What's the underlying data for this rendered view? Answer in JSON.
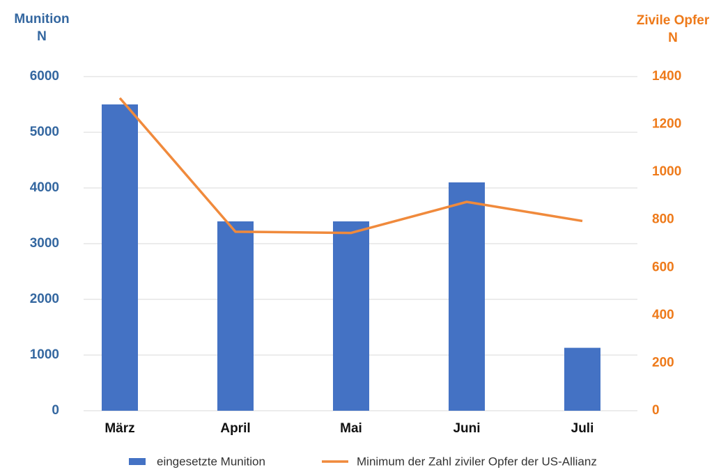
{
  "chart_data": {
    "type": "bar",
    "y_label": [
      "Munition",
      "N"
    ],
    "y2_label": [
      "Zivile Opfer",
      "N"
    ],
    "categories": [
      "März",
      "April",
      "Mai",
      "Juni",
      "Juli"
    ],
    "series": [
      {
        "name": "eingesetzte Munition",
        "type": "bar",
        "color": "#4472c4",
        "values": [
          5500,
          3400,
          3400,
          4100,
          1130
        ]
      },
      {
        "name": "Minimum der Zahl ziviler Opfer der US-Allianz",
        "type": "line",
        "axis": "y2",
        "color": "#f08a3c",
        "values": [
          1310,
          750,
          745,
          875,
          795
        ]
      }
    ],
    "ylim": [
      0,
      6000
    ],
    "yticks": [
      0,
      1000,
      2000,
      3000,
      4000,
      5000,
      6000
    ],
    "y2lim": [
      0,
      1400
    ],
    "y2ticks": [
      0,
      200,
      400,
      600,
      800,
      1000,
      1200,
      1400
    ],
    "grid": true,
    "ycolor": "#3467a0",
    "y2color": "#ee7a1a",
    "legend": "bottom"
  }
}
